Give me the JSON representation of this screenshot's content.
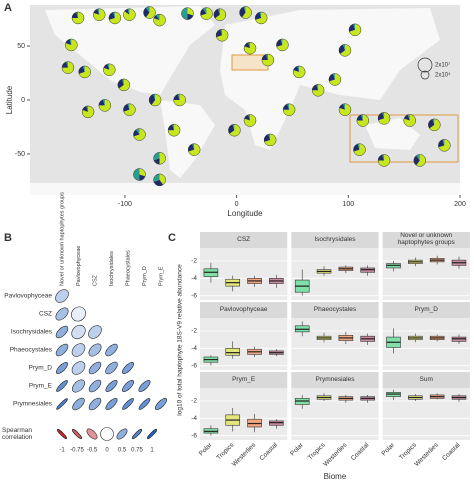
{
  "chart_data": [
    {
      "type": "pie-map",
      "panel": "A",
      "xlabel": "Longitude",
      "ylabel": "Latitude",
      "xlim": [
        -185,
        200
      ],
      "ylim": [
        -88,
        88
      ],
      "xticks": [
        -100,
        0,
        100,
        200
      ],
      "yticks": [
        50,
        0,
        -50
      ],
      "size_legend": [
        "2x10⁷",
        "2x10⁴"
      ],
      "colors": [
        "#c8e61e",
        "#1f2a6b",
        "#2a9d8f"
      ],
      "sites": [
        {
          "lon": -142,
          "lat": 76,
          "shares": [
            0.75,
            0.2,
            0.05
          ]
        },
        {
          "lon": -123,
          "lat": 79,
          "shares": [
            0.8,
            0.15,
            0.05
          ]
        },
        {
          "lon": -109,
          "lat": 76,
          "shares": [
            0.7,
            0.25,
            0.05
          ]
        },
        {
          "lon": -96,
          "lat": 79,
          "shares": [
            0.85,
            0.1,
            0.05
          ]
        },
        {
          "lon": -78,
          "lat": 81,
          "shares": [
            0.6,
            0.3,
            0.1
          ]
        },
        {
          "lon": -69,
          "lat": 74,
          "shares": [
            0.8,
            0.1,
            0.1
          ]
        },
        {
          "lon": -44,
          "lat": 80,
          "shares": [
            0.3,
            0.2,
            0.5
          ]
        },
        {
          "lon": -27,
          "lat": 80,
          "shares": [
            0.7,
            0.2,
            0.1
          ]
        },
        {
          "lon": -15,
          "lat": 79,
          "shares": [
            0.65,
            0.3,
            0.05
          ]
        },
        {
          "lon": 8,
          "lat": 81,
          "shares": [
            0.6,
            0.35,
            0.05
          ]
        },
        {
          "lon": 22,
          "lat": 76,
          "shares": [
            0.7,
            0.25,
            0.05
          ]
        },
        {
          "lon": -148,
          "lat": 51,
          "shares": [
            0.8,
            0.15,
            0.05
          ]
        },
        {
          "lon": -151,
          "lat": 30,
          "shares": [
            0.75,
            0.2,
            0.05
          ]
        },
        {
          "lon": -136,
          "lat": 26,
          "shares": [
            0.7,
            0.25,
            0.05
          ]
        },
        {
          "lon": -114,
          "lat": 28,
          "shares": [
            0.8,
            0.15,
            0.05
          ]
        },
        {
          "lon": -101,
          "lat": 14,
          "shares": [
            0.65,
            0.3,
            0.05
          ]
        },
        {
          "lon": -118,
          "lat": -5,
          "shares": [
            0.75,
            0.2,
            0.05
          ]
        },
        {
          "lon": -133,
          "lat": -11,
          "shares": [
            0.8,
            0.15,
            0.05
          ]
        },
        {
          "lon": -96,
          "lat": -9,
          "shares": [
            0.7,
            0.25,
            0.05
          ]
        },
        {
          "lon": -73,
          "lat": 0,
          "shares": [
            0.6,
            0.35,
            0.05
          ]
        },
        {
          "lon": -51,
          "lat": 0,
          "shares": [
            0.75,
            0.2,
            0.05
          ]
        },
        {
          "lon": -87,
          "lat": -32,
          "shares": [
            0.7,
            0.2,
            0.1
          ]
        },
        {
          "lon": -56,
          "lat": -28,
          "shares": [
            0.75,
            0.2,
            0.05
          ]
        },
        {
          "lon": -38,
          "lat": -46,
          "shares": [
            0.7,
            0.25,
            0.05
          ]
        },
        {
          "lon": -69,
          "lat": -54,
          "shares": [
            0.5,
            0.2,
            0.3
          ]
        },
        {
          "lon": -87,
          "lat": -69,
          "shares": [
            0.3,
            0.2,
            0.5
          ]
        },
        {
          "lon": -69,
          "lat": -74,
          "shares": [
            0.4,
            0.3,
            0.3
          ]
        },
        {
          "lon": -13,
          "lat": 60,
          "shares": [
            0.7,
            0.25,
            0.05
          ]
        },
        {
          "lon": 12,
          "lat": 48,
          "shares": [
            0.8,
            0.15,
            0.05
          ]
        },
        {
          "lon": 28,
          "lat": 37,
          "shares": [
            0.75,
            0.2,
            0.05
          ]
        },
        {
          "lon": 41,
          "lat": 51,
          "shares": [
            0.7,
            0.25,
            0.05
          ]
        },
        {
          "lon": 56,
          "lat": 26,
          "shares": [
            0.8,
            0.15,
            0.05
          ]
        },
        {
          "lon": 73,
          "lat": 9,
          "shares": [
            0.75,
            0.2,
            0.05
          ]
        },
        {
          "lon": 88,
          "lat": 19,
          "shares": [
            0.7,
            0.25,
            0.05
          ]
        },
        {
          "lon": 97,
          "lat": 46,
          "shares": [
            0.65,
            0.3,
            0.05
          ]
        },
        {
          "lon": 106,
          "lat": 65,
          "shares": [
            0.7,
            0.25,
            0.05
          ]
        },
        {
          "lon": 97,
          "lat": -9,
          "shares": [
            0.8,
            0.15,
            0.05
          ]
        },
        {
          "lon": 113,
          "lat": -19,
          "shares": [
            0.75,
            0.2,
            0.05
          ]
        },
        {
          "lon": 132,
          "lat": -17,
          "shares": [
            0.7,
            0.25,
            0.05
          ]
        },
        {
          "lon": 155,
          "lat": -19,
          "shares": [
            0.8,
            0.15,
            0.05
          ]
        },
        {
          "lon": 177,
          "lat": -23,
          "shares": [
            0.65,
            0.3,
            0.05
          ]
        },
        {
          "lon": 186,
          "lat": -42,
          "shares": [
            0.7,
            0.25,
            0.05
          ]
        },
        {
          "lon": 164,
          "lat": -56,
          "shares": [
            0.6,
            0.3,
            0.1
          ]
        },
        {
          "lon": 132,
          "lat": -56,
          "shares": [
            0.75,
            0.2,
            0.05
          ]
        },
        {
          "lon": 110,
          "lat": -46,
          "shares": [
            0.7,
            0.25,
            0.05
          ]
        },
        {
          "lon": 12,
          "lat": -19,
          "shares": [
            0.8,
            0.15,
            0.05
          ]
        },
        {
          "lon": 47,
          "lat": -9,
          "shares": [
            0.75,
            0.2,
            0.05
          ]
        },
        {
          "lon": 30,
          "lat": -37,
          "shares": [
            0.7,
            0.25,
            0.05
          ]
        },
        {
          "lon": -2,
          "lat": -28,
          "shares": [
            0.65,
            0.3,
            0.05
          ]
        }
      ]
    },
    {
      "type": "correlation",
      "panel": "B",
      "columns": [
        "Novel or unknown haptophytes groups",
        "Pavlovophyceae",
        "CSZ",
        "Isochrysidales",
        "Phaeocystales",
        "Prym_D",
        "Prym_E"
      ],
      "rows": [
        "Pavlovophyceae",
        "CSZ",
        "Isochrysidales",
        "Phaeocystales",
        "Prym_D",
        "Prym_E",
        "Prymnesiales"
      ],
      "values": [
        [
          0.3
        ],
        [
          0.4,
          0.1
        ],
        [
          0.5,
          0.2,
          0.3
        ],
        [
          0.5,
          0.3,
          0.4,
          0.5
        ],
        [
          0.6,
          0.3,
          0.5,
          0.5,
          0.6
        ],
        [
          0.7,
          0.4,
          0.5,
          0.6,
          0.6,
          0.6
        ],
        [
          0.8,
          0.5,
          0.5,
          0.6,
          0.7,
          0.7,
          0.6
        ]
      ],
      "legend_title": "Spearman correlation",
      "legend_ticks": [
        -1,
        -0.75,
        -0.5,
        0,
        0.5,
        0.75,
        1
      ]
    },
    {
      "type": "boxplot",
      "panel": "C",
      "xlabel": "Biome",
      "ylabel": "log10 of total haptophyte 18S-V9 relative abundance",
      "categories": [
        "Polar",
        "Tropics",
        "Westerlies",
        "Coastal"
      ],
      "colors": [
        "#7fe0a8",
        "#e3e67a",
        "#f4a582",
        "#c98aa0"
      ],
      "ylim": [
        -6.5,
        -0.5
      ],
      "yticks": [
        -2,
        -4,
        -6
      ],
      "facets": [
        {
          "title": "CSZ",
          "boxes": [
            {
              "median": -3.3,
              "q1": -3.8,
              "q3": -2.9,
              "low": -4.5,
              "high": -2.2
            },
            {
              "median": -4.5,
              "q1": -4.9,
              "q3": -4.1,
              "low": -5.5,
              "high": -3.7
            },
            {
              "median": -4.3,
              "q1": -4.6,
              "q3": -4.0,
              "low": -5.0,
              "high": -3.7
            },
            {
              "median": -4.3,
              "q1": -4.6,
              "q3": -4.0,
              "low": -5.1,
              "high": -3.6
            }
          ]
        },
        {
          "title": "Isochrysidales",
          "boxes": [
            {
              "median": -4.9,
              "q1": -5.6,
              "q3": -4.2,
              "low": -6.0,
              "high": -3.0
            },
            {
              "median": -3.2,
              "q1": -3.4,
              "q3": -3.0,
              "low": -3.7,
              "high": -2.6
            },
            {
              "median": -2.9,
              "q1": -3.1,
              "q3": -2.7,
              "low": -3.4,
              "high": -2.5
            },
            {
              "median": -3.0,
              "q1": -3.3,
              "q3": -2.8,
              "low": -3.7,
              "high": -2.5
            }
          ]
        },
        {
          "title": "Novel or unknown haptophytes groups",
          "boxes": [
            {
              "median": -2.5,
              "q1": -2.8,
              "q3": -2.3,
              "low": -3.2,
              "high": -2.0
            },
            {
              "median": -2.1,
              "q1": -2.3,
              "q3": -1.9,
              "low": -2.6,
              "high": -1.6
            },
            {
              "median": -1.9,
              "q1": -2.1,
              "q3": -1.7,
              "low": -2.4,
              "high": -1.4
            },
            {
              "median": -2.2,
              "q1": -2.5,
              "q3": -1.9,
              "low": -2.9,
              "high": -1.5
            }
          ]
        },
        {
          "title": "Pavlovophyceae",
          "boxes": [
            {
              "median": -5.3,
              "q1": -5.6,
              "q3": -5.0,
              "low": -6.0,
              "high": -4.8
            },
            {
              "median": -4.5,
              "q1": -4.8,
              "q3": -4.0,
              "low": -5.2,
              "high": -3.2
            },
            {
              "median": -4.4,
              "q1": -4.7,
              "q3": -4.1,
              "low": -5.0,
              "high": -3.8
            },
            {
              "median": -4.5,
              "q1": -4.7,
              "q3": -4.3,
              "low": -4.9,
              "high": -4.1
            }
          ]
        },
        {
          "title": "Phaeocystales",
          "boxes": [
            {
              "median": -1.8,
              "q1": -2.1,
              "q3": -1.4,
              "low": -2.6,
              "high": -0.9
            },
            {
              "median": -2.8,
              "q1": -3.0,
              "q3": -2.6,
              "low": -3.3,
              "high": -2.2
            },
            {
              "median": -2.8,
              "q1": -3.1,
              "q3": -2.5,
              "low": -3.5,
              "high": -2.1
            },
            {
              "median": -2.9,
              "q1": -3.2,
              "q3": -2.6,
              "low": -3.6,
              "high": -2.3
            }
          ]
        },
        {
          "title": "Prym_D",
          "boxes": [
            {
              "median": -3.3,
              "q1": -3.9,
              "q3": -2.7,
              "low": -4.6,
              "high": -1.7
            },
            {
              "median": -2.8,
              "q1": -3.0,
              "q3": -2.6,
              "low": -3.3,
              "high": -2.3
            },
            {
              "median": -2.8,
              "q1": -3.0,
              "q3": -2.6,
              "low": -3.2,
              "high": -2.4
            },
            {
              "median": -2.9,
              "q1": -3.2,
              "q3": -2.7,
              "low": -3.5,
              "high": -2.4
            }
          ]
        },
        {
          "title": "Prym_E",
          "boxes": [
            {
              "median": -5.5,
              "q1": -5.7,
              "q3": -5.2,
              "low": -6.0,
              "high": -4.8
            },
            {
              "median": -4.2,
              "q1": -4.8,
              "q3": -3.6,
              "low": -5.5,
              "high": -2.8
            },
            {
              "median": -4.6,
              "q1": -5.0,
              "q3": -4.1,
              "low": -5.6,
              "high": -3.5
            },
            {
              "median": -4.5,
              "q1": -4.8,
              "q3": -4.3,
              "low": -5.2,
              "high": -4.1
            }
          ]
        },
        {
          "title": "Prymnesiales",
          "boxes": [
            {
              "median": -2.0,
              "q1": -2.4,
              "q3": -1.7,
              "low": -2.9,
              "high": -1.3
            },
            {
              "median": -1.6,
              "q1": -1.8,
              "q3": -1.4,
              "low": -2.0,
              "high": -1.1
            },
            {
              "median": -1.7,
              "q1": -1.9,
              "q3": -1.5,
              "low": -2.2,
              "high": -1.3
            },
            {
              "median": -1.7,
              "q1": -1.9,
              "q3": -1.5,
              "low": -2.2,
              "high": -1.3
            }
          ]
        },
        {
          "title": "Sum",
          "boxes": [
            {
              "median": -1.2,
              "q1": -1.5,
              "q3": -1.0,
              "low": -1.9,
              "high": -0.7
            },
            {
              "median": -1.6,
              "q1": -1.8,
              "q3": -1.4,
              "low": -2.0,
              "high": -1.2
            },
            {
              "median": -1.5,
              "q1": -1.7,
              "q3": -1.3,
              "low": -1.8,
              "high": -1.1
            },
            {
              "median": -1.6,
              "q1": -1.8,
              "q3": -1.4,
              "low": -2.1,
              "high": -1.2
            }
          ]
        }
      ]
    }
  ]
}
